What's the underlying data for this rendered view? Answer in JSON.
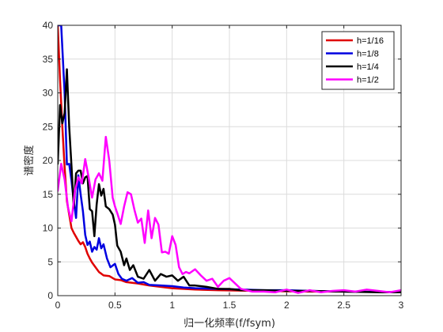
{
  "chart_data": {
    "type": "line",
    "title": "",
    "xlabel": "归一化频率(f/fsym)",
    "ylabel": "谱密度",
    "xlim": [
      0,
      3
    ],
    "ylim": [
      0,
      40
    ],
    "xticks": [
      "0",
      "0.5",
      "1",
      "1.5",
      "2",
      "2.5",
      "3"
    ],
    "xtick_values": [
      0,
      0.5,
      1,
      1.5,
      2,
      2.5,
      3
    ],
    "yticks": [
      "0",
      "5",
      "10",
      "15",
      "20",
      "25",
      "30",
      "35",
      "40"
    ],
    "ytick_values": [
      0,
      5,
      10,
      15,
      20,
      25,
      30,
      35,
      40
    ],
    "grid": true,
    "legend_position": "top-right",
    "series": [
      {
        "name": "h=1/16",
        "color": "#e00000",
        "x": [
          0,
          0.02,
          0.04,
          0.06,
          0.08,
          0.1,
          0.12,
          0.14,
          0.16,
          0.18,
          0.2,
          0.22,
          0.24,
          0.26,
          0.28,
          0.3,
          0.33,
          0.36,
          0.4,
          0.45,
          0.5,
          0.55,
          0.6,
          0.7,
          0.8,
          0.9,
          1.0,
          1.2,
          1.4,
          1.6,
          1.8,
          2.0,
          2.2,
          2.5,
          2.8,
          3.0
        ],
        "y": [
          40,
          32,
          25,
          19,
          14,
          12,
          10,
          9.3,
          8.7,
          8.1,
          7.6,
          7.9,
          7.2,
          6.2,
          5.5,
          4.9,
          4.2,
          3.5,
          3.0,
          2.9,
          2.4,
          2.3,
          2.0,
          1.8,
          1.5,
          1.3,
          1.1,
          0.9,
          0.8,
          0.75,
          0.7,
          0.65,
          0.6,
          0.6,
          0.55,
          0.5
        ]
      },
      {
        "name": "h=1/8",
        "color": "#0000e0",
        "x": [
          0,
          0.03,
          0.06,
          0.08,
          0.1,
          0.12,
          0.14,
          0.16,
          0.18,
          0.2,
          0.22,
          0.24,
          0.26,
          0.28,
          0.3,
          0.32,
          0.34,
          0.36,
          0.38,
          0.4,
          0.43,
          0.46,
          0.5,
          0.53,
          0.56,
          0.6,
          0.65,
          0.7,
          0.75,
          0.8,
          0.9,
          1.0,
          1.1,
          1.2,
          1.4,
          1.6,
          1.8,
          2.0,
          2.2,
          2.5,
          2.8,
          3.0
        ],
        "y": [
          40,
          40,
          30,
          19.4,
          19.5,
          17,
          14,
          11.5,
          17.8,
          15,
          12.5,
          9,
          7.5,
          8,
          6.5,
          7.2,
          6.8,
          8.5,
          7,
          7.6,
          5.5,
          4.2,
          4.7,
          3.2,
          2.5,
          2.2,
          2.6,
          1.9,
          2.0,
          1.6,
          1.5,
          1.4,
          1.2,
          1.1,
          1.0,
          0.9,
          0.8,
          0.8,
          0.7,
          0.6,
          0.55,
          0.5
        ]
      },
      {
        "name": "h=1/4",
        "color": "#000000",
        "x": [
          0,
          0.02,
          0.04,
          0.06,
          0.08,
          0.1,
          0.12,
          0.14,
          0.16,
          0.18,
          0.2,
          0.22,
          0.24,
          0.26,
          0.28,
          0.3,
          0.32,
          0.34,
          0.36,
          0.38,
          0.4,
          0.42,
          0.45,
          0.48,
          0.5,
          0.52,
          0.55,
          0.58,
          0.6,
          0.63,
          0.66,
          0.7,
          0.75,
          0.8,
          0.85,
          0.9,
          0.95,
          1.0,
          1.05,
          1.1,
          1.15,
          1.2,
          1.3,
          1.4,
          1.5,
          1.6,
          1.8,
          2.0,
          2.2,
          2.5,
          2.8,
          3.0
        ],
        "y": [
          19.5,
          28.2,
          25.5,
          27,
          33.5,
          25,
          19.2,
          13,
          18.1,
          18.5,
          18.5,
          16.6,
          17.5,
          17.7,
          12.8,
          12.5,
          8.8,
          13.5,
          16.5,
          14.8,
          15.8,
          13.2,
          12.8,
          12,
          10.5,
          7.4,
          6.5,
          4.5,
          5.5,
          3.8,
          4.5,
          2.8,
          2.5,
          3.8,
          2.2,
          3.2,
          2.8,
          3.0,
          2.2,
          2.8,
          1.5,
          1.5,
          1.3,
          1.0,
          1.0,
          0.8,
          0.8,
          0.7,
          0.7,
          0.6,
          0.5,
          0.5
        ]
      },
      {
        "name": "h=1/2",
        "color": "#ff00ff",
        "x": [
          0,
          0.03,
          0.06,
          0.09,
          0.12,
          0.15,
          0.18,
          0.21,
          0.24,
          0.27,
          0.3,
          0.33,
          0.36,
          0.39,
          0.42,
          0.45,
          0.48,
          0.5,
          0.52,
          0.55,
          0.58,
          0.61,
          0.64,
          0.67,
          0.7,
          0.73,
          0.76,
          0.79,
          0.82,
          0.85,
          0.88,
          0.91,
          0.94,
          0.97,
          1.0,
          1.03,
          1.06,
          1.09,
          1.12,
          1.15,
          1.2,
          1.25,
          1.3,
          1.35,
          1.4,
          1.45,
          1.5,
          1.6,
          1.7,
          1.8,
          1.9,
          2.0,
          2.1,
          2.2,
          2.3,
          2.4,
          2.5,
          2.6,
          2.7,
          2.8,
          2.9,
          3.0
        ],
        "y": [
          15.5,
          19.5,
          17.2,
          13,
          11,
          15.5,
          17.5,
          16.6,
          20.2,
          17.5,
          14.5,
          17.2,
          18.1,
          17,
          23.5,
          20,
          14.5,
          13.2,
          12.2,
          10.6,
          13.2,
          15.3,
          15,
          12.7,
          10.8,
          11.4,
          7.8,
          12.6,
          8.5,
          11.5,
          10.5,
          6.4,
          6.5,
          6.2,
          8.8,
          7.5,
          4.2,
          3.2,
          3.5,
          3.3,
          3.9,
          3.0,
          2.2,
          2.5,
          1.3,
          2.2,
          2.6,
          1.0,
          0.6,
          0.6,
          0.5,
          0.9,
          0.4,
          0.8,
          0.5,
          0.7,
          0.8,
          0.6,
          0.9,
          0.7,
          0.5,
          0.8
        ]
      }
    ]
  }
}
